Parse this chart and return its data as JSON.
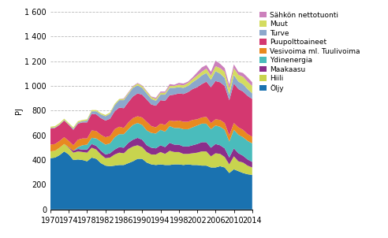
{
  "ylabel": "PJ",
  "years": [
    1970,
    1971,
    1972,
    1973,
    1974,
    1975,
    1976,
    1977,
    1978,
    1979,
    1980,
    1981,
    1982,
    1983,
    1984,
    1985,
    1986,
    1987,
    1988,
    1989,
    1990,
    1991,
    1992,
    1993,
    1994,
    1995,
    1996,
    1997,
    1998,
    1999,
    2000,
    2001,
    2002,
    2003,
    2004,
    2005,
    2006,
    2007,
    2008,
    2009,
    2010,
    2011,
    2012,
    2013,
    2014
  ],
  "series": {
    "Öljy": [
      415,
      420,
      440,
      470,
      445,
      400,
      405,
      400,
      390,
      420,
      410,
      375,
      355,
      350,
      355,
      360,
      360,
      375,
      390,
      410,
      410,
      380,
      365,
      360,
      365,
      360,
      360,
      365,
      365,
      360,
      365,
      360,
      360,
      355,
      355,
      340,
      340,
      350,
      340,
      295,
      325,
      310,
      295,
      285,
      280
    ],
    "Hiili": [
      55,
      55,
      60,
      60,
      55,
      60,
      65,
      65,
      70,
      80,
      75,
      70,
      60,
      70,
      90,
      100,
      95,
      115,
      120,
      110,
      95,
      85,
      80,
      85,
      100,
      90,
      115,
      100,
      100,
      90,
      85,
      95,
      100,
      115,
      115,
      90,
      115,
      100,
      85,
      70,
      105,
      80,
      85,
      70,
      60
    ],
    "Maakaasu": [
      0,
      0,
      0,
      0,
      5,
      15,
      20,
      20,
      25,
      30,
      30,
      30,
      30,
      35,
      40,
      45,
      45,
      50,
      55,
      60,
      60,
      55,
      55,
      50,
      55,
      55,
      65,
      60,
      60,
      60,
      60,
      65,
      70,
      75,
      75,
      70,
      75,
      70,
      70,
      55,
      65,
      65,
      55,
      50,
      45
    ],
    "Ydinenergia": [
      0,
      0,
      0,
      0,
      0,
      0,
      15,
      35,
      40,
      50,
      60,
      75,
      80,
      80,
      100,
      105,
      110,
      110,
      120,
      120,
      120,
      120,
      120,
      120,
      125,
      125,
      135,
      135,
      135,
      140,
      140,
      145,
      150,
      150,
      150,
      150,
      150,
      150,
      150,
      130,
      150,
      150,
      150,
      150,
      150
    ],
    "Vesivoima ml. Tuulivoima": [
      55,
      55,
      55,
      55,
      50,
      45,
      60,
      55,
      50,
      60,
      60,
      55,
      60,
      60,
      65,
      60,
      50,
      55,
      55,
      55,
      60,
      70,
      55,
      50,
      50,
      55,
      45,
      55,
      60,
      60,
      60,
      60,
      50,
      50,
      55,
      50,
      50,
      55,
      55,
      50,
      55,
      60,
      60,
      55,
      55
    ],
    "Puupolttoaineet": [
      130,
      130,
      130,
      135,
      130,
      125,
      130,
      130,
      130,
      135,
      135,
      135,
      135,
      140,
      145,
      155,
      160,
      165,
      175,
      185,
      185,
      180,
      175,
      175,
      190,
      195,
      205,
      215,
      220,
      225,
      240,
      250,
      260,
      270,
      285,
      290,
      310,
      305,
      300,
      285,
      320,
      310,
      310,
      310,
      305
    ],
    "Turve": [
      5,
      5,
      5,
      5,
      5,
      10,
      10,
      10,
      15,
      20,
      25,
      30,
      35,
      40,
      50,
      60,
      65,
      65,
      70,
      65,
      55,
      50,
      45,
      40,
      45,
      50,
      60,
      55,
      50,
      50,
      50,
      55,
      65,
      70,
      70,
      60,
      80,
      70,
      65,
      45,
      70,
      60,
      60,
      55,
      45
    ],
    "Muut": [
      10,
      10,
      10,
      10,
      10,
      10,
      10,
      10,
      10,
      10,
      10,
      10,
      10,
      10,
      10,
      10,
      10,
      10,
      10,
      15,
      15,
      15,
      15,
      15,
      15,
      15,
      15,
      15,
      20,
      20,
      25,
      25,
      30,
      30,
      35,
      35,
      40,
      45,
      50,
      50,
      55,
      55,
      60,
      60,
      60
    ],
    "Sähkön nettotuonti": [
      0,
      0,
      0,
      0,
      0,
      0,
      0,
      0,
      0,
      0,
      0,
      0,
      0,
      0,
      0,
      0,
      5,
      5,
      5,
      5,
      5,
      5,
      5,
      10,
      10,
      10,
      15,
      10,
      15,
      15,
      10,
      15,
      25,
      35,
      30,
      30,
      45,
      35,
      30,
      30,
      30,
      25,
      30,
      35,
      30
    ]
  },
  "colors": {
    "Öljy": "#1a72b0",
    "Hiili": "#c8d44e",
    "Maakaasu": "#8b2f8b",
    "Ydinenergia": "#4abcbc",
    "Vesivoima ml. Tuulivoima": "#e88a20",
    "Puupolttoaineet": "#d43870",
    "Turve": "#8ca8cc",
    "Muut": "#d4dc60",
    "Sähkön nettotuonti": "#cc80bc"
  },
  "yticks": [
    0,
    200,
    400,
    600,
    800,
    1000,
    1200,
    1400,
    1600
  ],
  "xticks": [
    1970,
    1974,
    1978,
    1982,
    1986,
    1990,
    1994,
    1998,
    2002,
    2006,
    2010,
    2014
  ],
  "ylim": [
    0,
    1600
  ],
  "figsize": [
    4.92,
    3.02
  ],
  "dpi": 100
}
